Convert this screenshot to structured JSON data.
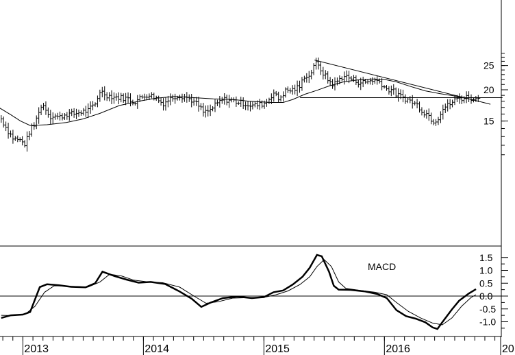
{
  "chart_data": [
    {
      "type": "ohlc-bar",
      "title": "",
      "ylabel": "",
      "y_scale": "log",
      "ylim": [
        10,
        28
      ],
      "yticks": [
        15,
        20,
        25
      ],
      "x_tick_labels": [
        "2013",
        "2014",
        "2015",
        "2016",
        "20"
      ],
      "colors": {
        "bars": "#000000",
        "moving_average": "#000000",
        "trendline": "#000000",
        "support": "#000000"
      },
      "price_path": [
        {
          "x": 2012.82,
          "y": 15.3
        },
        {
          "x": 2012.88,
          "y": 13.6
        },
        {
          "x": 2012.92,
          "y": 12.8
        },
        {
          "x": 2012.97,
          "y": 12.6
        },
        {
          "x": 2013.02,
          "y": 12.1
        },
        {
          "x": 2013.06,
          "y": 13.8
        },
        {
          "x": 2013.1,
          "y": 14.5
        },
        {
          "x": 2013.14,
          "y": 17.0
        },
        {
          "x": 2013.18,
          "y": 17.3
        },
        {
          "x": 2013.22,
          "y": 15.6
        },
        {
          "x": 2013.26,
          "y": 15.8
        },
        {
          "x": 2013.3,
          "y": 15.5
        },
        {
          "x": 2013.36,
          "y": 16.0
        },
        {
          "x": 2013.42,
          "y": 16.0
        },
        {
          "x": 2013.48,
          "y": 16.3
        },
        {
          "x": 2013.54,
          "y": 16.5
        },
        {
          "x": 2013.6,
          "y": 17.5
        },
        {
          "x": 2013.64,
          "y": 19.8
        },
        {
          "x": 2013.7,
          "y": 19.0
        },
        {
          "x": 2013.76,
          "y": 18.7
        },
        {
          "x": 2013.82,
          "y": 18.6
        },
        {
          "x": 2013.88,
          "y": 18.4
        },
        {
          "x": 2013.92,
          "y": 17.8
        },
        {
          "x": 2013.98,
          "y": 18.6
        },
        {
          "x": 2014.04,
          "y": 19.2
        },
        {
          "x": 2014.1,
          "y": 18.6
        },
        {
          "x": 2014.16,
          "y": 17.6
        },
        {
          "x": 2014.22,
          "y": 18.4
        },
        {
          "x": 2014.28,
          "y": 19.0
        },
        {
          "x": 2014.34,
          "y": 18.8
        },
        {
          "x": 2014.4,
          "y": 18.2
        },
        {
          "x": 2014.46,
          "y": 17.2
        },
        {
          "x": 2014.5,
          "y": 16.2
        },
        {
          "x": 2014.55,
          "y": 16.5
        },
        {
          "x": 2014.6,
          "y": 17.4
        },
        {
          "x": 2014.66,
          "y": 18.3
        },
        {
          "x": 2014.72,
          "y": 18.2
        },
        {
          "x": 2014.78,
          "y": 17.9
        },
        {
          "x": 2014.84,
          "y": 17.6
        },
        {
          "x": 2014.9,
          "y": 17.3
        },
        {
          "x": 2014.96,
          "y": 17.4
        },
        {
          "x": 2015.02,
          "y": 17.8
        },
        {
          "x": 2015.08,
          "y": 19.5
        },
        {
          "x": 2015.12,
          "y": 18.3
        },
        {
          "x": 2015.18,
          "y": 19.8
        },
        {
          "x": 2015.24,
          "y": 20.0
        },
        {
          "x": 2015.3,
          "y": 20.6
        },
        {
          "x": 2015.34,
          "y": 23.0
        },
        {
          "x": 2015.38,
          "y": 22.5
        },
        {
          "x": 2015.42,
          "y": 25.8
        },
        {
          "x": 2015.46,
          "y": 24.5
        },
        {
          "x": 2015.5,
          "y": 23.0
        },
        {
          "x": 2015.54,
          "y": 21.6
        },
        {
          "x": 2015.58,
          "y": 21.0
        },
        {
          "x": 2015.62,
          "y": 21.9
        },
        {
          "x": 2015.66,
          "y": 22.8
        },
        {
          "x": 2015.72,
          "y": 22.2
        },
        {
          "x": 2015.78,
          "y": 21.5
        },
        {
          "x": 2015.84,
          "y": 21.4
        },
        {
          "x": 2015.9,
          "y": 21.9
        },
        {
          "x": 2015.96,
          "y": 21.6
        },
        {
          "x": 2016.02,
          "y": 20.0
        },
        {
          "x": 2016.06,
          "y": 20.1
        },
        {
          "x": 2016.1,
          "y": 19.1
        },
        {
          "x": 2016.16,
          "y": 18.6
        },
        {
          "x": 2016.22,
          "y": 18.0
        },
        {
          "x": 2016.28,
          "y": 17.3
        },
        {
          "x": 2016.32,
          "y": 16.3
        },
        {
          "x": 2016.36,
          "y": 16.0
        },
        {
          "x": 2016.4,
          "y": 15.0
        },
        {
          "x": 2016.44,
          "y": 15.2
        },
        {
          "x": 2016.48,
          "y": 16.8
        },
        {
          "x": 2016.54,
          "y": 17.5
        },
        {
          "x": 2016.6,
          "y": 18.4
        },
        {
          "x": 2016.66,
          "y": 18.5
        },
        {
          "x": 2016.7,
          "y": 18.9
        },
        {
          "x": 2016.74,
          "y": 18.1
        },
        {
          "x": 2016.78,
          "y": 19.0
        }
      ],
      "moving_average": [
        {
          "x": 2012.8,
          "y": 17.0
        },
        {
          "x": 2012.9,
          "y": 15.9
        },
        {
          "x": 2012.98,
          "y": 15.0
        },
        {
          "x": 2013.06,
          "y": 14.4
        },
        {
          "x": 2013.2,
          "y": 14.5
        },
        {
          "x": 2013.36,
          "y": 14.8
        },
        {
          "x": 2013.5,
          "y": 15.3
        },
        {
          "x": 2013.64,
          "y": 16.1
        },
        {
          "x": 2013.8,
          "y": 17.3
        },
        {
          "x": 2013.96,
          "y": 18.0
        },
        {
          "x": 2014.1,
          "y": 18.5
        },
        {
          "x": 2014.26,
          "y": 18.8
        },
        {
          "x": 2014.42,
          "y": 18.6
        },
        {
          "x": 2014.58,
          "y": 18.4
        },
        {
          "x": 2014.74,
          "y": 18.3
        },
        {
          "x": 2014.88,
          "y": 18.0
        },
        {
          "x": 2015.06,
          "y": 17.8
        },
        {
          "x": 2015.16,
          "y": 17.8
        },
        {
          "x": 2015.24,
          "y": 18.3
        },
        {
          "x": 2015.34,
          "y": 19.2
        },
        {
          "x": 2015.44,
          "y": 19.9
        },
        {
          "x": 2015.54,
          "y": 20.7
        },
        {
          "x": 2015.66,
          "y": 21.5
        },
        {
          "x": 2015.78,
          "y": 21.9
        },
        {
          "x": 2015.9,
          "y": 22.1
        },
        {
          "x": 2016.0,
          "y": 22.0
        },
        {
          "x": 2016.1,
          "y": 21.5
        },
        {
          "x": 2016.22,
          "y": 20.6
        },
        {
          "x": 2016.34,
          "y": 19.8
        },
        {
          "x": 2016.46,
          "y": 19.3
        },
        {
          "x": 2016.58,
          "y": 18.9
        },
        {
          "x": 2016.68,
          "y": 18.5
        },
        {
          "x": 2016.76,
          "y": 18.1
        }
      ],
      "trendline": [
        {
          "x": 2015.42,
          "y": 26.3
        },
        {
          "x": 2016.88,
          "y": 17.5
        }
      ],
      "support_line": [
        {
          "x": 2015.3,
          "y": 18.6
        },
        {
          "x": 2016.98,
          "y": 18.6
        }
      ]
    },
    {
      "type": "line",
      "title": "",
      "label": "MACD",
      "ylim": [
        -1.5,
        1.65
      ],
      "yticks": [
        1.5,
        1.0,
        0.5,
        0.0,
        -0.5,
        -1.0
      ],
      "ytick_labels": [
        "1.5",
        "1.0",
        "0.5",
        "0.0",
        "-0.5",
        "-1.0"
      ],
      "x_tick_labels": [
        "2013",
        "2014",
        "2015",
        "2016",
        "20"
      ],
      "zero_line": 0.0,
      "series": [
        {
          "points": [
            {
              "x": 2012.82,
              "y": -0.85
            },
            {
              "x": 2012.9,
              "y": -0.75
            },
            {
              "x": 2013.0,
              "y": -0.72
            },
            {
              "x": 2013.06,
              "y": -0.62
            },
            {
              "x": 2013.14,
              "y": 0.35
            },
            {
              "x": 2013.2,
              "y": 0.46
            },
            {
              "x": 2013.3,
              "y": 0.42
            },
            {
              "x": 2013.4,
              "y": 0.36
            },
            {
              "x": 2013.52,
              "y": 0.34
            },
            {
              "x": 2013.6,
              "y": 0.5
            },
            {
              "x": 2013.66,
              "y": 0.95
            },
            {
              "x": 2013.76,
              "y": 0.78
            },
            {
              "x": 2013.86,
              "y": 0.64
            },
            {
              "x": 2013.96,
              "y": 0.52
            },
            {
              "x": 2014.06,
              "y": 0.55
            },
            {
              "x": 2014.18,
              "y": 0.47
            },
            {
              "x": 2014.3,
              "y": 0.18
            },
            {
              "x": 2014.4,
              "y": -0.1
            },
            {
              "x": 2014.48,
              "y": -0.42
            },
            {
              "x": 2014.56,
              "y": -0.25
            },
            {
              "x": 2014.66,
              "y": -0.08
            },
            {
              "x": 2014.78,
              "y": -0.02
            },
            {
              "x": 2014.9,
              "y": -0.08
            },
            {
              "x": 2015.0,
              "y": -0.04
            },
            {
              "x": 2015.08,
              "y": 0.15
            },
            {
              "x": 2015.16,
              "y": 0.22
            },
            {
              "x": 2015.24,
              "y": 0.45
            },
            {
              "x": 2015.32,
              "y": 0.75
            },
            {
              "x": 2015.38,
              "y": 1.1
            },
            {
              "x": 2015.44,
              "y": 1.6
            },
            {
              "x": 2015.48,
              "y": 1.55
            },
            {
              "x": 2015.54,
              "y": 0.95
            },
            {
              "x": 2015.58,
              "y": 0.4
            },
            {
              "x": 2015.62,
              "y": 0.25
            },
            {
              "x": 2015.72,
              "y": 0.24
            },
            {
              "x": 2015.84,
              "y": 0.18
            },
            {
              "x": 2015.94,
              "y": 0.08
            },
            {
              "x": 2016.02,
              "y": -0.08
            },
            {
              "x": 2016.1,
              "y": -0.55
            },
            {
              "x": 2016.18,
              "y": -0.78
            },
            {
              "x": 2016.26,
              "y": -0.88
            },
            {
              "x": 2016.34,
              "y": -1.02
            },
            {
              "x": 2016.4,
              "y": -1.22
            },
            {
              "x": 2016.44,
              "y": -1.28
            },
            {
              "x": 2016.48,
              "y": -1.02
            },
            {
              "x": 2016.56,
              "y": -0.52
            },
            {
              "x": 2016.62,
              "y": -0.18
            },
            {
              "x": 2016.7,
              "y": 0.1
            },
            {
              "x": 2016.76,
              "y": 0.27
            }
          ]
        },
        {
          "points": [
            {
              "x": 2012.82,
              "y": -0.75
            },
            {
              "x": 2012.92,
              "y": -0.76
            },
            {
              "x": 2013.02,
              "y": -0.7
            },
            {
              "x": 2013.1,
              "y": -0.4
            },
            {
              "x": 2013.18,
              "y": 0.15
            },
            {
              "x": 2013.26,
              "y": 0.4
            },
            {
              "x": 2013.4,
              "y": 0.38
            },
            {
              "x": 2013.54,
              "y": 0.35
            },
            {
              "x": 2013.64,
              "y": 0.55
            },
            {
              "x": 2013.72,
              "y": 0.85
            },
            {
              "x": 2013.82,
              "y": 0.78
            },
            {
              "x": 2013.92,
              "y": 0.62
            },
            {
              "x": 2014.04,
              "y": 0.55
            },
            {
              "x": 2014.16,
              "y": 0.52
            },
            {
              "x": 2014.3,
              "y": 0.35
            },
            {
              "x": 2014.42,
              "y": 0.0
            },
            {
              "x": 2014.52,
              "y": -0.28
            },
            {
              "x": 2014.62,
              "y": -0.22
            },
            {
              "x": 2014.74,
              "y": -0.08
            },
            {
              "x": 2014.88,
              "y": -0.06
            },
            {
              "x": 2015.0,
              "y": -0.05
            },
            {
              "x": 2015.1,
              "y": 0.05
            },
            {
              "x": 2015.2,
              "y": 0.2
            },
            {
              "x": 2015.3,
              "y": 0.45
            },
            {
              "x": 2015.38,
              "y": 0.75
            },
            {
              "x": 2015.44,
              "y": 1.15
            },
            {
              "x": 2015.5,
              "y": 1.42
            },
            {
              "x": 2015.56,
              "y": 1.15
            },
            {
              "x": 2015.62,
              "y": 0.55
            },
            {
              "x": 2015.68,
              "y": 0.3
            },
            {
              "x": 2015.8,
              "y": 0.22
            },
            {
              "x": 2015.92,
              "y": 0.15
            },
            {
              "x": 2016.02,
              "y": 0.05
            },
            {
              "x": 2016.1,
              "y": -0.25
            },
            {
              "x": 2016.2,
              "y": -0.6
            },
            {
              "x": 2016.3,
              "y": -0.85
            },
            {
              "x": 2016.4,
              "y": -1.05
            },
            {
              "x": 2016.48,
              "y": -1.12
            },
            {
              "x": 2016.56,
              "y": -0.85
            },
            {
              "x": 2016.64,
              "y": -0.4
            },
            {
              "x": 2016.72,
              "y": -0.05
            },
            {
              "x": 2016.76,
              "y": 0.05
            }
          ]
        }
      ]
    }
  ]
}
